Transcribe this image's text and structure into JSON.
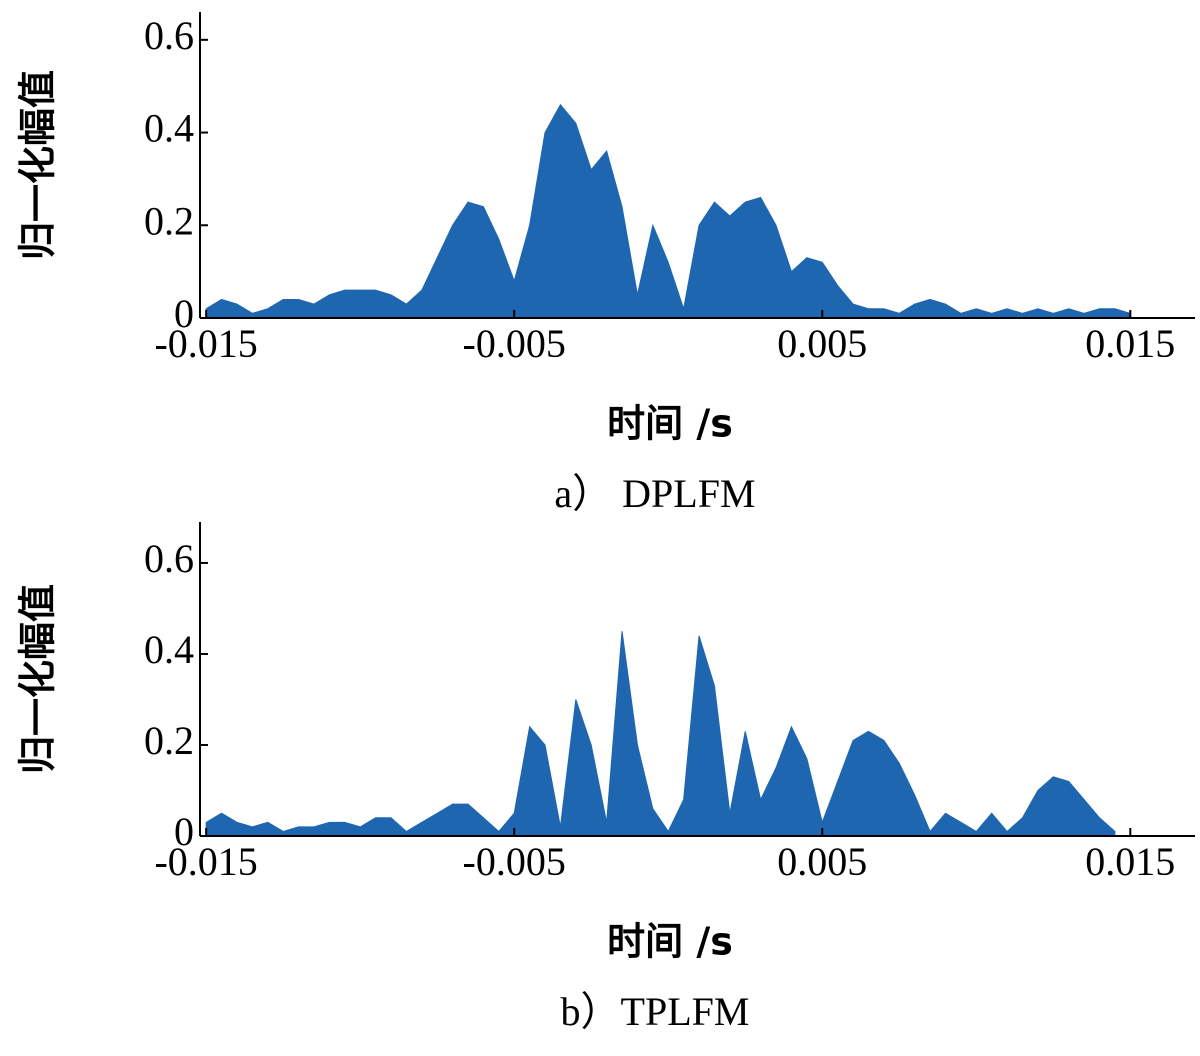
{
  "chart_data": [
    {
      "type": "area",
      "caption": "a） DPLFM",
      "xlabel": "时间 /s",
      "ylabel": "归一化幅值",
      "color": "#1f66b0",
      "x": [
        -0.015,
        -0.0145,
        -0.014,
        -0.0135,
        -0.013,
        -0.0125,
        -0.012,
        -0.0115,
        -0.011,
        -0.0105,
        -0.01,
        -0.0095,
        -0.009,
        -0.0085,
        -0.008,
        -0.0075,
        -0.007,
        -0.0065,
        -0.006,
        -0.0055,
        -0.005,
        -0.0045,
        -0.004,
        -0.0035,
        -0.003,
        -0.0025,
        -0.002,
        -0.0015,
        -0.001,
        -0.0005,
        0,
        0.0005,
        0.001,
        0.0015,
        0.002,
        0.0025,
        0.003,
        0.0035,
        0.004,
        0.0045,
        0.005,
        0.0055,
        0.006,
        0.0065,
        0.007,
        0.0075,
        0.008,
        0.0085,
        0.009,
        0.0095,
        0.01,
        0.0105,
        0.011,
        0.0115,
        0.012,
        0.0125,
        0.013,
        0.0135,
        0.014,
        0.0145,
        0.015
      ],
      "values": [
        0.02,
        0.04,
        0.03,
        0.01,
        0.02,
        0.04,
        0.04,
        0.03,
        0.05,
        0.06,
        0.06,
        0.06,
        0.05,
        0.03,
        0.06,
        0.13,
        0.2,
        0.25,
        0.24,
        0.17,
        0.08,
        0.2,
        0.4,
        0.46,
        0.42,
        0.32,
        0.36,
        0.24,
        0.05,
        0.2,
        0.12,
        0.02,
        0.2,
        0.25,
        0.22,
        0.25,
        0.26,
        0.2,
        0.1,
        0.13,
        0.12,
        0.07,
        0.03,
        0.02,
        0.02,
        0.01,
        0.03,
        0.04,
        0.03,
        0.01,
        0.02,
        0.01,
        0.02,
        0.01,
        0.02,
        0.01,
        0.02,
        0.01,
        0.02,
        0.02,
        0.01
      ],
      "xlim": [
        -0.0152,
        0.0171
      ],
      "xticks": [
        -0.015,
        -0.005,
        0.005,
        0.015
      ],
      "ylim": [
        0,
        0.66
      ],
      "yticks": [
        0,
        0.2,
        0.4,
        0.6
      ]
    },
    {
      "type": "area",
      "caption": "b）TPLFM",
      "xlabel": "时间 /s",
      "ylabel": "归一化幅值",
      "color": "#1f66b0",
      "x": [
        -0.015,
        -0.0145,
        -0.014,
        -0.0135,
        -0.013,
        -0.0125,
        -0.012,
        -0.0115,
        -0.011,
        -0.0105,
        -0.01,
        -0.0095,
        -0.009,
        -0.0085,
        -0.008,
        -0.0075,
        -0.007,
        -0.0065,
        -0.006,
        -0.0055,
        -0.005,
        -0.0045,
        -0.004,
        -0.0035,
        -0.003,
        -0.0025,
        -0.002,
        -0.0015,
        -0.001,
        -0.0005,
        0,
        0.0005,
        0.001,
        0.0015,
        0.002,
        0.0025,
        0.003,
        0.0035,
        0.004,
        0.0045,
        0.005,
        0.0055,
        0.006,
        0.0065,
        0.007,
        0.0075,
        0.008,
        0.0085,
        0.009,
        0.0095,
        0.01,
        0.0105,
        0.011,
        0.0115,
        0.012,
        0.0125,
        0.013,
        0.0135,
        0.014,
        0.0145
      ],
      "values": [
        0.03,
        0.05,
        0.03,
        0.02,
        0.03,
        0.01,
        0.02,
        0.02,
        0.03,
        0.03,
        0.02,
        0.04,
        0.04,
        0.01,
        0.03,
        0.05,
        0.07,
        0.07,
        0.04,
        0.01,
        0.05,
        0.24,
        0.2,
        0.02,
        0.3,
        0.2,
        0.03,
        0.45,
        0.2,
        0.06,
        0.01,
        0.08,
        0.44,
        0.33,
        0.05,
        0.23,
        0.08,
        0.15,
        0.24,
        0.17,
        0.03,
        0.12,
        0.21,
        0.23,
        0.21,
        0.16,
        0.09,
        0.01,
        0.05,
        0.03,
        0.01,
        0.05,
        0.01,
        0.04,
        0.1,
        0.13,
        0.12,
        0.08,
        0.04,
        0.01
      ],
      "xlim": [
        -0.0152,
        0.0171
      ],
      "xticks": [
        -0.015,
        -0.005,
        0.005,
        0.015
      ],
      "ylim": [
        0,
        0.69
      ],
      "yticks": [
        0,
        0.2,
        0.4,
        0.6
      ]
    }
  ]
}
